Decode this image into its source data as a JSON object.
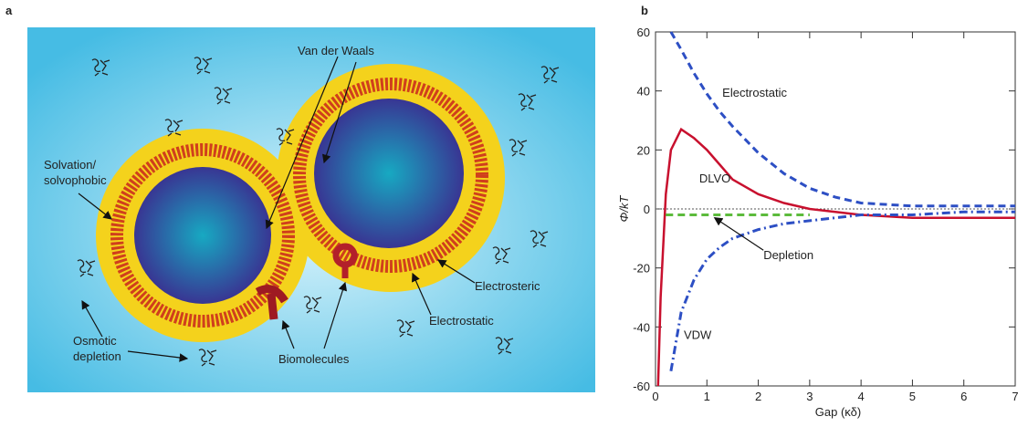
{
  "panel_labels": [
    "a",
    "b"
  ],
  "diagram": {
    "labels": [
      {
        "lines": [
          "Van der Waals"
        ]
      },
      {
        "lines": [
          "Solvation/",
          "solvophobic"
        ]
      },
      {
        "lines": [
          "Osmotic",
          "depletion"
        ]
      },
      {
        "lines": [
          "Biomolecules"
        ]
      },
      {
        "lines": [
          "Electrosteric"
        ]
      },
      {
        "lines": [
          "Electrostatic"
        ]
      }
    ]
  },
  "chart_data": {
    "type": "line",
    "x_label": "Gap (κδ)",
    "y_label": "Φ/kT",
    "x": [
      0.05,
      0.1,
      0.2,
      0.3,
      0.5,
      0.75,
      1,
      1.25,
      1.5,
      2,
      2.5,
      3,
      3.5,
      4,
      5,
      6,
      7
    ],
    "series": [
      {
        "name": "Electrostatic",
        "color": "#2d4fc4",
        "dash": "dashed",
        "values": [
          null,
          null,
          null,
          60,
          54,
          46,
          39,
          33,
          28,
          19,
          12,
          7,
          4,
          2,
          1,
          1,
          1
        ]
      },
      {
        "name": "DLVO",
        "color": "#c8102e",
        "dash": "solid",
        "values": [
          -60,
          -30,
          5,
          20,
          27,
          24,
          20,
          15,
          10,
          5,
          2,
          0,
          -1,
          -2,
          -3,
          -3,
          -3
        ]
      },
      {
        "name": "Depletion",
        "color": "#5cbb3c",
        "dash": "dashed",
        "values": [
          null,
          null,
          -2,
          -2,
          -2,
          -2,
          -2,
          -2,
          -2,
          -2,
          -2,
          -2,
          null,
          null,
          null,
          null,
          null
        ]
      },
      {
        "name": "VDW",
        "color": "#2d4fc4",
        "dash": "dashdot",
        "values": [
          null,
          null,
          null,
          -55,
          -35,
          -24,
          -17,
          -13,
          -10,
          -7,
          -5,
          -4,
          -3,
          -2,
          -2,
          -1,
          -1
        ]
      }
    ],
    "xlim": [
      0,
      7
    ],
    "xticks": [
      0,
      1,
      2,
      3,
      4,
      5,
      6,
      7
    ],
    "ylim": [
      -60,
      60
    ],
    "yticks": [
      -60,
      -40,
      -20,
      0,
      20,
      40,
      60
    ],
    "zero_line": true
  }
}
